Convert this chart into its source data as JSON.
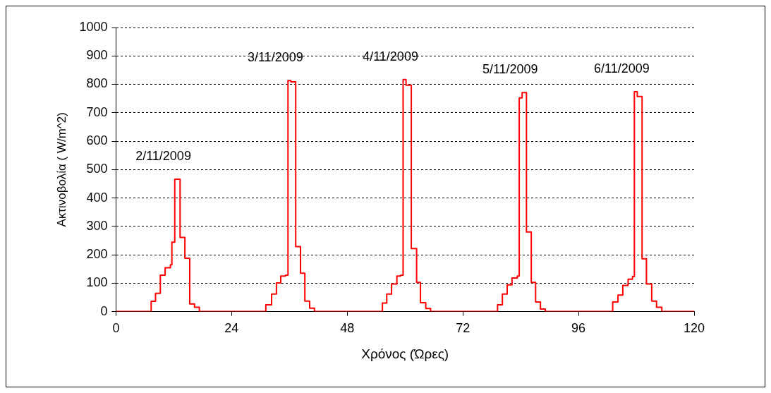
{
  "chart_data": {
    "type": "step",
    "xlabel": "Χρόνος (Ώρες)",
    "ylabel": "Ακτινοβολία ( W/m^2)",
    "x": [
      0,
      7.3,
      8.2,
      9.2,
      10.2,
      11.3,
      11.6,
      12.2,
      13.3,
      14.3,
      15.3,
      16.3,
      17.3,
      31.1,
      32.3,
      33.3,
      34.2,
      35.2,
      35.7,
      36.3,
      37.3,
      38.3,
      39.2,
      40.2,
      41.2,
      55.3,
      56.2,
      57.2,
      58.3,
      59.1,
      59.6,
      60.2,
      61.3,
      62.4,
      63.2,
      64.3,
      65.3,
      79.2,
      80.2,
      81.2,
      82.2,
      83.3,
      83.7,
      84.3,
      85.2,
      86.2,
      87.1,
      88.1,
      89.1,
      103.1,
      104.2,
      105.2,
      106.3,
      107.2,
      107.6,
      108.2,
      109.2,
      110.1,
      111.2,
      112.2,
      113.3,
      120
    ],
    "series": [
      {
        "color": "#ff0000",
        "values": [
          0,
          36,
          64,
          128,
          154,
          165,
          244,
          466,
          261,
          188,
          27,
          15,
          0,
          24,
          62,
          101,
          125,
          128,
          813,
          809,
          229,
          135,
          37,
          12,
          0,
          30,
          62,
          97,
          125,
          128,
          817,
          797,
          222,
          103,
          31,
          11,
          0,
          24,
          62,
          94,
          118,
          125,
          752,
          771,
          280,
          103,
          34,
          9,
          0,
          34,
          58,
          92,
          114,
          123,
          774,
          757,
          186,
          97,
          37,
          15,
          0,
          0
        ]
      }
    ],
    "xlim": [
      0,
      120
    ],
    "xticks": [
      0,
      24,
      48,
      72,
      96,
      120
    ],
    "ylim": [
      0,
      1000
    ],
    "yticks": [
      0,
      100,
      200,
      300,
      400,
      500,
      600,
      700,
      800,
      900,
      1000
    ],
    "grid": "y",
    "legend": false,
    "marker": "none",
    "line_style": "solid",
    "annotations": [
      "2/11/2009",
      "3/11/2009",
      "4/11/2009",
      "5/11/2009",
      "6/11/2009"
    ]
  }
}
